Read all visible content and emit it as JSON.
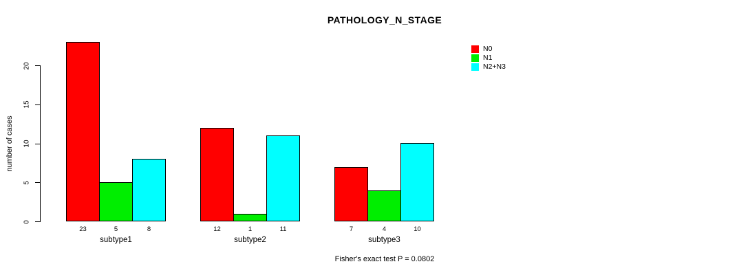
{
  "chart_data": {
    "type": "bar",
    "title": "PATHOLOGY_N_STAGE",
    "ylabel": "number of cases",
    "xlabel": "",
    "footnote": "Fisher's exact test P = 0.0802",
    "categories": [
      "subtype1",
      "subtype2",
      "subtype3"
    ],
    "series": [
      {
        "name": "N0",
        "color": "#ff0000",
        "values": [
          23,
          12,
          7
        ]
      },
      {
        "name": "N1",
        "color": "#00ee00",
        "values": [
          5,
          1,
          4
        ]
      },
      {
        "name": "N2+N3",
        "color": "#00ffff",
        "values": [
          8,
          11,
          10
        ]
      }
    ],
    "yticks": [
      0,
      5,
      10,
      15,
      20
    ],
    "ylim": [
      0,
      20
    ],
    "grid": false,
    "legend_position": "right",
    "bar_border_color": "#000000",
    "background_color": "#ffffff"
  }
}
